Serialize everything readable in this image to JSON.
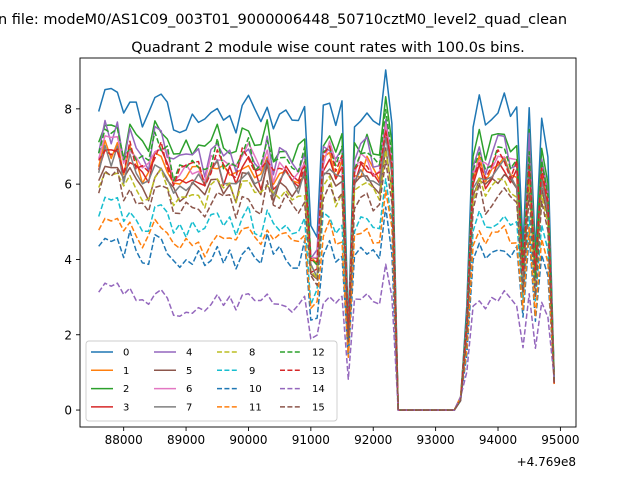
{
  "figure": {
    "suptitle": "n file: modeM0/AS1C09_003T01_9000006448_50710cztM0_level2_quad_clean",
    "offset_label": "+4.769e8"
  },
  "chart_data": {
    "type": "line",
    "title": "Quadrant 2 module wise count rates with 100.0s bins.",
    "xlabel": "",
    "ylabel": "",
    "x_offset": 476900000,
    "xlim": [
      87300,
      95250
    ],
    "ylim": [
      -0.45,
      9.35
    ],
    "x_ticks": [
      88000,
      89000,
      90000,
      91000,
      92000,
      93000,
      94000,
      95000
    ],
    "x_tick_labels": [
      "88000",
      "89000",
      "90000",
      "91000",
      "92000",
      "93000",
      "94000",
      "95000"
    ],
    "y_ticks": [
      0,
      2,
      4,
      6,
      8
    ],
    "y_tick_labels": [
      "0",
      "2",
      "4",
      "6",
      "8"
    ],
    "grid": false,
    "legend": {
      "placement": "lower-left",
      "columns": 4
    },
    "x_start": 87600,
    "x_step": 100,
    "x_end": 94900,
    "gap": {
      "start": 92400,
      "end": 93300
    },
    "series": [
      {
        "name": "0",
        "style": "solid",
        "color": "#1f77b4",
        "base": 7.9,
        "amp": 0.55
      },
      {
        "name": "1",
        "style": "solid",
        "color": "#ff7f0e",
        "base": 6.4,
        "amp": 0.5
      },
      {
        "name": "2",
        "style": "solid",
        "color": "#2ca02c",
        "base": 7.1,
        "amp": 0.6
      },
      {
        "name": "3",
        "style": "solid",
        "color": "#d62728",
        "base": 6.3,
        "amp": 0.5
      },
      {
        "name": "4",
        "style": "solid",
        "color": "#9467bd",
        "base": 6.8,
        "amp": 0.6
      },
      {
        "name": "5",
        "style": "solid",
        "color": "#8c564b",
        "base": 6.0,
        "amp": 0.5
      },
      {
        "name": "6",
        "style": "solid",
        "color": "#e377c2",
        "base": 6.6,
        "amp": 0.55
      },
      {
        "name": "7",
        "style": "solid",
        "color": "#7f7f7f",
        "base": 6.2,
        "amp": 0.5
      },
      {
        "name": "8",
        "style": "dashed",
        "color": "#bcbd22",
        "base": 5.8,
        "amp": 0.5
      },
      {
        "name": "9",
        "style": "dashed",
        "color": "#17becf",
        "base": 5.0,
        "amp": 0.45
      },
      {
        "name": "10",
        "style": "dashed",
        "color": "#1f77b4",
        "base": 4.2,
        "amp": 0.45
      },
      {
        "name": "11",
        "style": "dashed",
        "color": "#ff7f0e",
        "base": 4.6,
        "amp": 0.4
      },
      {
        "name": "12",
        "style": "dashed",
        "color": "#2ca02c",
        "base": 6.7,
        "amp": 0.55
      },
      {
        "name": "13",
        "style": "dashed",
        "color": "#d62728",
        "base": 6.5,
        "amp": 0.55
      },
      {
        "name": "14",
        "style": "dashed",
        "color": "#9467bd",
        "base": 2.9,
        "amp": 0.3
      },
      {
        "name": "15",
        "style": "dashed",
        "color": "#8c564b",
        "base": 5.6,
        "amp": 0.5
      }
    ]
  }
}
